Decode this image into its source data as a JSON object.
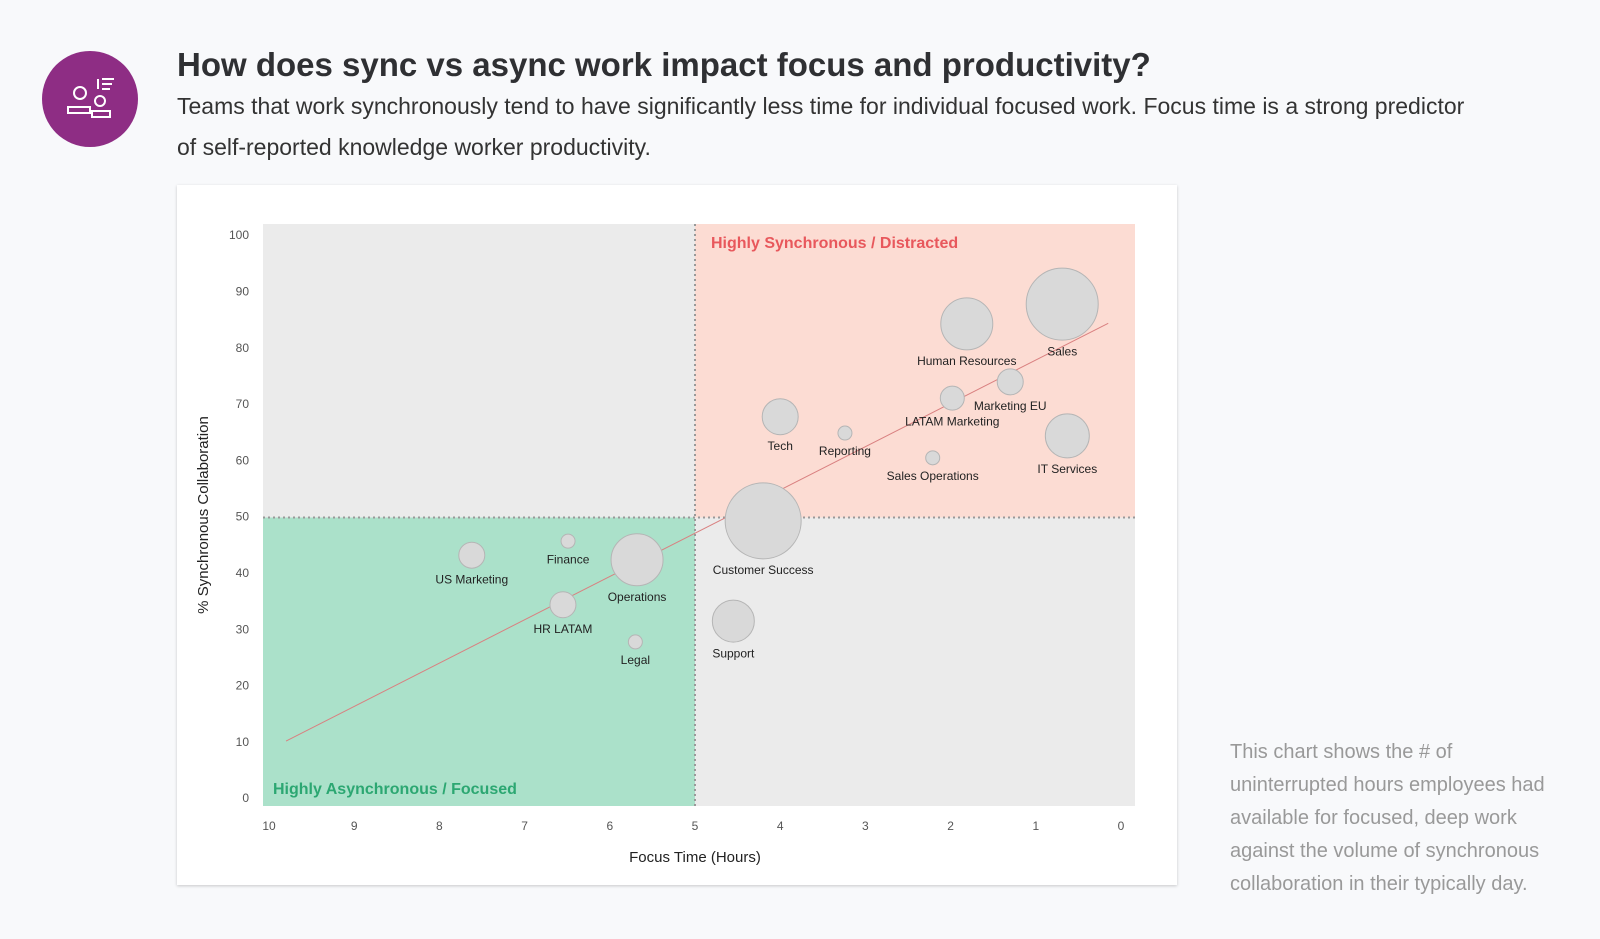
{
  "header": {
    "title": "How does sync vs async work impact focus and productivity?",
    "subtitle": "Teams that work synchronously tend to have significantly less time for individual focused work. Focus time is a strong predictor of self-reported knowledge worker productivity."
  },
  "note": "This chart shows the # of uninterrupted hours employees had available for focused, deep work against the volume of synchronous collaboration in their typically day.",
  "chart_data": {
    "type": "bubble",
    "x_label": "Focus Time (Hours)",
    "y_label": "% Synchronous Collaboration",
    "quadrant_labels": {
      "top_right": "Highly Synchronous / Distracted",
      "bottom_left": "Highly Asynchronous / Focused"
    },
    "xlim": [
      10,
      0
    ],
    "ylim": [
      0,
      100
    ],
    "xticks": [
      10,
      9,
      8,
      7,
      6,
      5,
      4,
      3,
      2,
      1,
      0
    ],
    "yticks": [
      0,
      10,
      20,
      30,
      40,
      50,
      60,
      70,
      80,
      90,
      100
    ],
    "x_divider": 5,
    "y_divider": 50,
    "color": "#d9d9d9",
    "names": [
      "Sales",
      "Human Resources",
      "Marketing EU",
      "LATAM Marketing",
      "IT Services",
      "Tech",
      "Reporting",
      "Sales Operations",
      "Customer Success",
      "Support",
      "Finance",
      "US Marketing",
      "Operations",
      "HR LATAM",
      "Legal"
    ],
    "x": [
      0.69,
      1.81,
      1.3,
      1.98,
      0.63,
      4.0,
      3.24,
      2.21,
      4.2,
      4.55,
      6.49,
      7.62,
      5.68,
      6.55,
      5.7
    ],
    "y": [
      87.9,
      84.4,
      74.1,
      71.2,
      64.5,
      67.9,
      65.0,
      60.6,
      49.4,
      31.6,
      45.8,
      43.3,
      42.5,
      34.5,
      27.9
    ],
    "size": [
      36,
      26,
      13,
      12,
      22,
      18,
      7,
      7,
      38,
      21,
      7,
      13,
      26,
      13,
      7
    ],
    "trendline": {
      "color": "#d98080",
      "x": [
        9.8,
        0.15
      ],
      "y": [
        10.3,
        84.5
      ]
    }
  }
}
